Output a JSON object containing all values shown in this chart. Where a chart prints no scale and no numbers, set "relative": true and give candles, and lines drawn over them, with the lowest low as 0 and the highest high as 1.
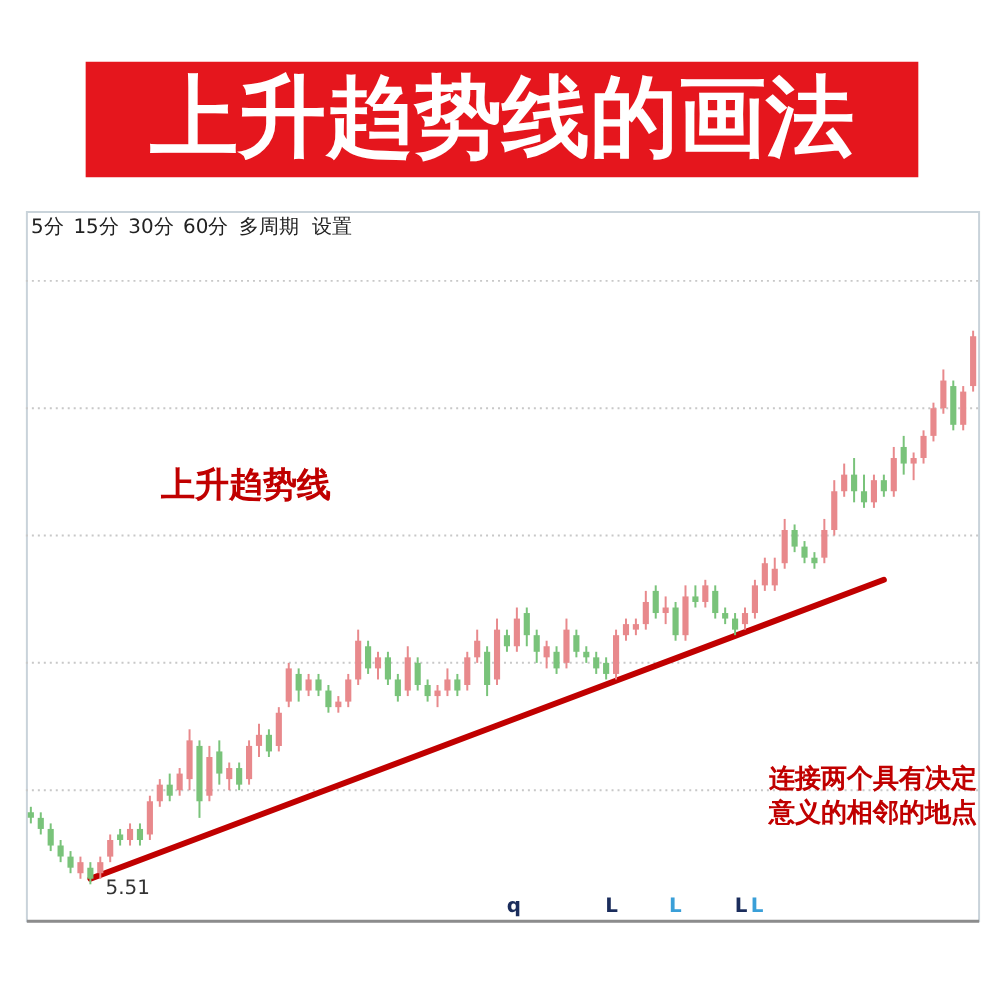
{
  "chart_data": {
    "type": "candlestick",
    "relative": true,
    "title": "上升趋势线的画法",
    "categories": [
      null,
      null,
      null,
      null,
      null,
      null,
      null,
      null,
      null,
      null,
      null,
      null,
      null,
      null,
      null,
      null,
      null,
      null,
      null,
      null,
      null,
      null,
      null,
      null,
      null,
      null,
      null,
      null,
      null,
      null,
      null,
      null,
      null,
      null,
      null,
      null,
      null,
      null,
      null,
      null,
      null,
      null,
      null,
      null,
      null,
      null,
      null,
      null,
      null,
      null,
      null,
      null,
      null,
      null,
      null,
      null,
      null,
      null,
      null,
      null,
      null,
      null,
      null,
      null,
      null,
      null,
      null,
      null,
      null,
      null,
      null,
      null,
      null,
      null,
      null,
      null,
      null,
      null,
      null,
      null,
      null,
      null,
      null,
      null,
      null,
      null,
      null,
      null,
      null,
      null,
      null,
      null,
      null,
      null,
      null,
      null
    ],
    "ohlc": [
      [
        0.13,
        0.14,
        0.11,
        0.12
      ],
      [
        0.12,
        0.13,
        0.09,
        0.1
      ],
      [
        0.1,
        0.11,
        0.06,
        0.07
      ],
      [
        0.07,
        0.08,
        0.04,
        0.05
      ],
      [
        0.05,
        0.06,
        0.02,
        0.03
      ],
      [
        0.02,
        0.05,
        0.01,
        0.04
      ],
      [
        0.03,
        0.04,
        0.0,
        0.01
      ],
      [
        0.02,
        0.05,
        0.01,
        0.04
      ],
      [
        0.05,
        0.09,
        0.04,
        0.08
      ],
      [
        0.09,
        0.1,
        0.07,
        0.08
      ],
      [
        0.08,
        0.11,
        0.07,
        0.1
      ],
      [
        0.1,
        0.11,
        0.07,
        0.08
      ],
      [
        0.09,
        0.16,
        0.08,
        0.15
      ],
      [
        0.15,
        0.19,
        0.14,
        0.18
      ],
      [
        0.18,
        0.2,
        0.15,
        0.16
      ],
      [
        0.17,
        0.21,
        0.16,
        0.2
      ],
      [
        0.19,
        0.28,
        0.17,
        0.26
      ],
      [
        0.25,
        0.26,
        0.12,
        0.15
      ],
      [
        0.16,
        0.25,
        0.15,
        0.23
      ],
      [
        0.24,
        0.26,
        0.18,
        0.2
      ],
      [
        0.19,
        0.22,
        0.17,
        0.21
      ],
      [
        0.21,
        0.22,
        0.17,
        0.18
      ],
      [
        0.19,
        0.26,
        0.18,
        0.25
      ],
      [
        0.25,
        0.29,
        0.23,
        0.27
      ],
      [
        0.27,
        0.28,
        0.23,
        0.24
      ],
      [
        0.25,
        0.32,
        0.24,
        0.31
      ],
      [
        0.33,
        0.4,
        0.32,
        0.39
      ],
      [
        0.38,
        0.39,
        0.33,
        0.35
      ],
      [
        0.35,
        0.38,
        0.34,
        0.37
      ],
      [
        0.37,
        0.38,
        0.34,
        0.35
      ],
      [
        0.35,
        0.36,
        0.31,
        0.32
      ],
      [
        0.32,
        0.34,
        0.31,
        0.33
      ],
      [
        0.33,
        0.38,
        0.32,
        0.37
      ],
      [
        0.37,
        0.46,
        0.36,
        0.44
      ],
      [
        0.43,
        0.44,
        0.38,
        0.39
      ],
      [
        0.39,
        0.42,
        0.37,
        0.41
      ],
      [
        0.41,
        0.42,
        0.36,
        0.37
      ],
      [
        0.37,
        0.38,
        0.33,
        0.34
      ],
      [
        0.35,
        0.43,
        0.34,
        0.41
      ],
      [
        0.4,
        0.41,
        0.35,
        0.36
      ],
      [
        0.36,
        0.37,
        0.33,
        0.34
      ],
      [
        0.34,
        0.36,
        0.32,
        0.35
      ],
      [
        0.35,
        0.39,
        0.34,
        0.37
      ],
      [
        0.37,
        0.38,
        0.34,
        0.35
      ],
      [
        0.36,
        0.42,
        0.35,
        0.41
      ],
      [
        0.41,
        0.46,
        0.4,
        0.44
      ],
      [
        0.42,
        0.43,
        0.34,
        0.36
      ],
      [
        0.37,
        0.48,
        0.36,
        0.46
      ],
      [
        0.45,
        0.46,
        0.42,
        0.43
      ],
      [
        0.43,
        0.5,
        0.42,
        0.48
      ],
      [
        0.49,
        0.5,
        0.43,
        0.45
      ],
      [
        0.45,
        0.46,
        0.4,
        0.42
      ],
      [
        0.41,
        0.44,
        0.39,
        0.43
      ],
      [
        0.42,
        0.43,
        0.38,
        0.39
      ],
      [
        0.4,
        0.48,
        0.39,
        0.46
      ],
      [
        0.45,
        0.46,
        0.41,
        0.42
      ],
      [
        0.42,
        0.43,
        0.4,
        0.41
      ],
      [
        0.41,
        0.42,
        0.38,
        0.39
      ],
      [
        0.4,
        0.41,
        0.37,
        0.38
      ],
      [
        0.38,
        0.46,
        0.37,
        0.45
      ],
      [
        0.45,
        0.48,
        0.44,
        0.47
      ],
      [
        0.46,
        0.48,
        0.45,
        0.47
      ],
      [
        0.47,
        0.53,
        0.46,
        0.51
      ],
      [
        0.53,
        0.54,
        0.48,
        0.49
      ],
      [
        0.49,
        0.52,
        0.47,
        0.5
      ],
      [
        0.5,
        0.51,
        0.44,
        0.45
      ],
      [
        0.45,
        0.54,
        0.44,
        0.52
      ],
      [
        0.52,
        0.54,
        0.5,
        0.51
      ],
      [
        0.51,
        0.55,
        0.5,
        0.54
      ],
      [
        0.53,
        0.54,
        0.48,
        0.49
      ],
      [
        0.49,
        0.5,
        0.47,
        0.48
      ],
      [
        0.48,
        0.49,
        0.45,
        0.46
      ],
      [
        0.47,
        0.5,
        0.46,
        0.49
      ],
      [
        0.49,
        0.55,
        0.48,
        0.54
      ],
      [
        0.54,
        0.59,
        0.53,
        0.58
      ],
      [
        0.54,
        0.59,
        0.53,
        0.57
      ],
      [
        0.58,
        0.66,
        0.57,
        0.64
      ],
      [
        0.64,
        0.65,
        0.6,
        0.61
      ],
      [
        0.61,
        0.62,
        0.58,
        0.59
      ],
      [
        0.59,
        0.6,
        0.57,
        0.58
      ],
      [
        0.59,
        0.66,
        0.58,
        0.64
      ],
      [
        0.64,
        0.73,
        0.63,
        0.71
      ],
      [
        0.71,
        0.76,
        0.7,
        0.74
      ],
      [
        0.74,
        0.77,
        0.69,
        0.71
      ],
      [
        0.71,
        0.74,
        0.68,
        0.69
      ],
      [
        0.69,
        0.74,
        0.68,
        0.73
      ],
      [
        0.73,
        0.74,
        0.7,
        0.71
      ],
      [
        0.71,
        0.79,
        0.7,
        0.77
      ],
      [
        0.79,
        0.81,
        0.74,
        0.76
      ],
      [
        0.76,
        0.78,
        0.73,
        0.77
      ],
      [
        0.77,
        0.82,
        0.76,
        0.81
      ],
      [
        0.81,
        0.87,
        0.8,
        0.86
      ],
      [
        0.86,
        0.93,
        0.85,
        0.91
      ],
      [
        0.9,
        0.91,
        0.82,
        0.83
      ],
      [
        0.83,
        0.9,
        0.82,
        0.89
      ],
      [
        0.9,
        1.0,
        0.89,
        0.99
      ]
    ],
    "colors": [
      "#79c37a",
      "#79c37a",
      "#79c37a",
      "#79c37a",
      "#79c37a",
      "#e8898c",
      "#79c37a",
      "#e8898c",
      "#e8898c",
      "#79c37a",
      "#e8898c",
      "#79c37a",
      "#e8898c",
      "#e8898c",
      "#79c37a",
      "#e8898c",
      "#e8898c",
      "#79c37a",
      "#e8898c",
      "#79c37a",
      "#e8898c",
      "#79c37a",
      "#e8898c",
      "#e8898c",
      "#79c37a",
      "#e8898c",
      "#e8898c",
      "#79c37a",
      "#e8898c",
      "#79c37a",
      "#79c37a",
      "#e8898c",
      "#e8898c",
      "#e8898c",
      "#79c37a",
      "#e8898c",
      "#79c37a",
      "#79c37a",
      "#e8898c",
      "#79c37a",
      "#79c37a",
      "#e8898c",
      "#e8898c",
      "#79c37a",
      "#e8898c",
      "#e8898c",
      "#79c37a",
      "#e8898c",
      "#79c37a",
      "#e8898c",
      "#79c37a",
      "#79c37a",
      "#e8898c",
      "#79c37a",
      "#e8898c",
      "#79c37a",
      "#79c37a",
      "#79c37a",
      "#79c37a",
      "#e8898c",
      "#e8898c",
      "#e8898c",
      "#e8898c",
      "#79c37a",
      "#e8898c",
      "#79c37a",
      "#e8898c",
      "#79c37a",
      "#e8898c",
      "#79c37a",
      "#79c37a",
      "#79c37a",
      "#e8898c",
      "#e8898c",
      "#e8898c",
      "#e8898c",
      "#e8898c",
      "#79c37a",
      "#79c37a",
      "#79c37a",
      "#e8898c",
      "#e8898c",
      "#e8898c",
      "#79c37a",
      "#79c37a",
      "#e8898c",
      "#79c37a",
      "#e8898c",
      "#79c37a",
      "#e8898c",
      "#e8898c",
      "#e8898c",
      "#e8898c",
      "#79c37a",
      "#e8898c",
      "#e8898c"
    ],
    "series": [
      {
        "type": "line",
        "color": "#c00000",
        "values": [
          null,
          null,
          null,
          null,
          null,
          null,
          0.01,
          null,
          null,
          null,
          null,
          null,
          null,
          null,
          null,
          null,
          null,
          null,
          null,
          null,
          null,
          null,
          null,
          null,
          null,
          null,
          null,
          null,
          null,
          null,
          null,
          null,
          null,
          null,
          null,
          null,
          null,
          null,
          null,
          null,
          null,
          null,
          null,
          null,
          null,
          null,
          null,
          null,
          null,
          null,
          null,
          null,
          null,
          null,
          null,
          null,
          null,
          null,
          null,
          null,
          null,
          null,
          null,
          null,
          null,
          null,
          null,
          null,
          null,
          null,
          null,
          null,
          null,
          null,
          null,
          null,
          null,
          null,
          null,
          null,
          null,
          null,
          null,
          null,
          null,
          null,
          0.55,
          null,
          null,
          null,
          null,
          null,
          null,
          null,
          null,
          null
        ]
      }
    ],
    "ref_lines": [
      {
        "axis": "y",
        "value": 1.09,
        "line_style": "dotted",
        "color": "#c8c8c8"
      },
      {
        "axis": "y",
        "value": 0.86,
        "line_style": "dotted",
        "color": "#c8c8c8"
      },
      {
        "axis": "y",
        "value": 0.63,
        "line_style": "dotted",
        "color": "#c8c8c8"
      },
      {
        "axis": "y",
        "value": 0.4,
        "line_style": "dotted",
        "color": "#c8c8c8"
      },
      {
        "axis": "y",
        "value": 0.17,
        "line_style": "dotted",
        "color": "#c8c8c8"
      }
    ],
    "annotations": [
      "5分",
      "15分",
      "30分",
      "60分",
      "多周期",
      "设置",
      "上升趋势线",
      "连接两个具有决定意义的相邻的地点",
      "5.51",
      "q",
      "L",
      "L",
      "L",
      "L"
    ]
  }
}
